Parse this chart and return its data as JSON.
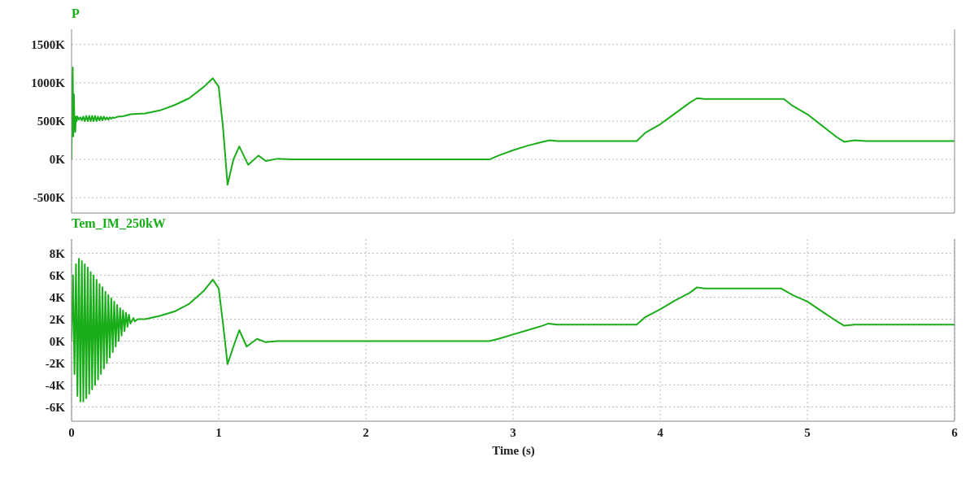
{
  "chart_data": [
    {
      "type": "line",
      "title": "P",
      "x": [
        0,
        0.004,
        0.008,
        0.012,
        0.016,
        0.02,
        0.025,
        0.03,
        0.035,
        0.04,
        0.05,
        0.06,
        0.07,
        0.08,
        0.09,
        0.1,
        0.11,
        0.12,
        0.13,
        0.14,
        0.15,
        0.16,
        0.17,
        0.18,
        0.19,
        0.2,
        0.21,
        0.22,
        0.23,
        0.24,
        0.25,
        0.26,
        0.27,
        0.28,
        0.29,
        0.3,
        0.32,
        0.34,
        0.36,
        0.38,
        0.4,
        0.5,
        0.6,
        0.7,
        0.8,
        0.9,
        0.96,
        1.0,
        1.03,
        1.06,
        1.1,
        1.14,
        1.2,
        1.27,
        1.32,
        1.4,
        1.5,
        2.84,
        2.9,
        3.0,
        3.1,
        3.2,
        3.25,
        3.3,
        3.4,
        3.84,
        3.9,
        4.0,
        4.1,
        4.2,
        4.25,
        4.3,
        4.4,
        4.84,
        4.9,
        5.0,
        5.1,
        5.2,
        5.25,
        5.32,
        5.4,
        6.0
      ],
      "series": [
        {
          "color": "#1aad1a",
          "values": [
            0,
            900000,
            1200000,
            300000,
            850000,
            450000,
            360000,
            560000,
            500000,
            560000,
            520000,
            550000,
            510000,
            560000,
            500000,
            570000,
            500000,
            570000,
            500000,
            570000,
            500000,
            570000,
            500000,
            560000,
            510000,
            560000,
            510000,
            560000,
            520000,
            550000,
            520000,
            550000,
            530000,
            550000,
            540000,
            550000,
            560000,
            560000,
            570000,
            580000,
            590000,
            600000,
            640000,
            710000,
            800000,
            950000,
            1060000,
            950000,
            400000,
            -330000,
            0,
            170000,
            -70000,
            50000,
            -20000,
            10000,
            0,
            0,
            50000,
            120000,
            180000,
            230000,
            250000,
            240000,
            240000,
            240000,
            350000,
            460000,
            600000,
            740000,
            800000,
            790000,
            790000,
            790000,
            700000,
            590000,
            440000,
            290000,
            230000,
            250000,
            240000,
            240000
          ]
        }
      ],
      "xlim": [
        0,
        6
      ],
      "xticks": [
        0,
        1,
        2,
        3,
        4,
        5,
        6
      ],
      "ylim": [
        -700000,
        1700000
      ],
      "yticks": [
        {
          "value": -500000,
          "label": "-500K"
        },
        {
          "value": 0,
          "label": "0K"
        },
        {
          "value": 500000,
          "label": "500K"
        },
        {
          "value": 1000000,
          "label": "1000K"
        },
        {
          "value": 1500000,
          "label": "1500K"
        }
      ],
      "tick_labels": "y",
      "grid": true,
      "legend": false,
      "marker": "none",
      "line_style": "solid"
    },
    {
      "type": "line",
      "title": "Tem_IM_250kW",
      "xlabel": "Time (s)",
      "x": [
        0,
        0.01,
        0.02,
        0.03,
        0.04,
        0.05,
        0.06,
        0.07,
        0.08,
        0.09,
        0.1,
        0.11,
        0.12,
        0.13,
        0.14,
        0.15,
        0.16,
        0.17,
        0.18,
        0.19,
        0.2,
        0.21,
        0.22,
        0.23,
        0.24,
        0.25,
        0.26,
        0.27,
        0.28,
        0.29,
        0.3,
        0.31,
        0.32,
        0.33,
        0.34,
        0.35,
        0.36,
        0.37,
        0.38,
        0.39,
        0.4,
        0.42,
        0.43,
        0.45,
        0.5,
        0.6,
        0.7,
        0.8,
        0.9,
        0.96,
        1.0,
        1.03,
        1.06,
        1.1,
        1.14,
        1.19,
        1.26,
        1.32,
        1.4,
        1.5,
        2.84,
        2.9,
        3.0,
        3.1,
        3.2,
        3.24,
        3.3,
        3.4,
        3.84,
        3.9,
        4.0,
        4.1,
        4.2,
        4.25,
        4.3,
        4.4,
        4.82,
        4.9,
        5.0,
        5.1,
        5.2,
        5.25,
        5.32,
        6.0
      ],
      "series": [
        {
          "color": "#1aad1a",
          "values": [
            0,
            6000,
            -3000,
            7000,
            -5000,
            7500,
            -5500,
            7300,
            -5500,
            7000,
            -5200,
            6700,
            -4800,
            6300,
            -4400,
            6000,
            -4000,
            5600,
            -3500,
            5200,
            -3000,
            4900,
            -2500,
            4500,
            -2000,
            4200,
            -1500,
            3900,
            -1000,
            3600,
            -500,
            3300,
            0,
            3000,
            500,
            2800,
            900,
            2600,
            1300,
            2400,
            1600,
            2100,
            1800,
            2000,
            2000,
            2300,
            2700,
            3400,
            4600,
            5600,
            4800,
            1500,
            -2100,
            -500,
            1000,
            -500,
            200,
            -100,
            0,
            0,
            0,
            200,
            600,
            1000,
            1400,
            1600,
            1500,
            1500,
            1500,
            2200,
            2900,
            3700,
            4400,
            4900,
            4800,
            4800,
            4800,
            4200,
            3600,
            2700,
            1800,
            1400,
            1500,
            1500
          ]
        }
      ],
      "xlim": [
        0,
        6
      ],
      "xticks": [
        0,
        1,
        2,
        3,
        4,
        5,
        6
      ],
      "ylim": [
        -7300,
        9300
      ],
      "yticks": [
        {
          "value": -6000,
          "label": "-6K"
        },
        {
          "value": -4000,
          "label": "-4K"
        },
        {
          "value": -2000,
          "label": "-2K"
        },
        {
          "value": 0,
          "label": "0K"
        },
        {
          "value": 2000,
          "label": "2K"
        },
        {
          "value": 4000,
          "label": "4K"
        },
        {
          "value": 6000,
          "label": "6K"
        },
        {
          "value": 8000,
          "label": "8K"
        }
      ],
      "grid": true,
      "legend": false,
      "marker": "none",
      "line_style": "solid"
    }
  ]
}
